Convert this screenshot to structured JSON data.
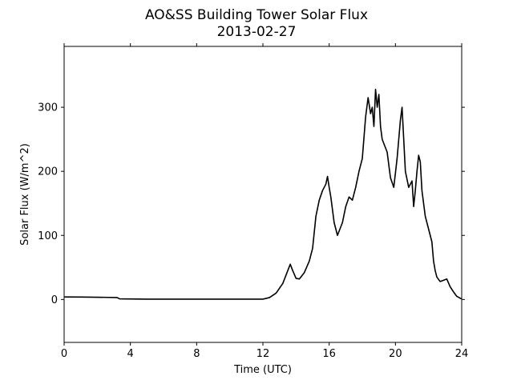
{
  "chart_data": {
    "type": "line",
    "title": "AO&SS Building Tower Solar Flux",
    "subtitle": "2013-02-27",
    "xlabel": "Time (UTC)",
    "ylabel": "Solar Flux (W/m^2)",
    "xlim": [
      0,
      24
    ],
    "ylim": [
      -67,
      395
    ],
    "xticks": [
      0,
      4,
      8,
      12,
      16,
      20,
      24
    ],
    "yticks": [
      0,
      100,
      200,
      300
    ],
    "grid": false,
    "line_color": "#000000",
    "series": [
      {
        "x": [
          0,
          1,
          2,
          3.2,
          3.35,
          5,
          8,
          10,
          12,
          12.4,
          12.8,
          13.2,
          13.5,
          13.65,
          13.8,
          14.0,
          14.2,
          14.5,
          14.8,
          15.0,
          15.2,
          15.4,
          15.6,
          15.8,
          15.9,
          16.0,
          16.1,
          16.3,
          16.5,
          16.8,
          17.0,
          17.2,
          17.4,
          17.6,
          17.8,
          18.0,
          18.2,
          18.35,
          18.5,
          18.6,
          18.7,
          18.8,
          18.9,
          19.0,
          19.1,
          19.2,
          19.35,
          19.5,
          19.7,
          19.9,
          20.1,
          20.3,
          20.4,
          20.5,
          20.6,
          20.8,
          21.0,
          21.1,
          21.2,
          21.3,
          21.4,
          21.5,
          21.6,
          21.8,
          22.0,
          22.2,
          22.3,
          22.4,
          22.5,
          22.7,
          22.9,
          23.1,
          23.3,
          23.5,
          23.7,
          23.9,
          24.0
        ],
        "y": [
          4,
          3.8,
          3.5,
          3,
          1,
          0.5,
          0.5,
          0.5,
          0.5,
          3,
          10,
          25,
          45,
          55,
          45,
          33,
          32,
          42,
          60,
          80,
          130,
          155,
          170,
          180,
          192,
          175,
          160,
          120,
          100,
          120,
          145,
          160,
          155,
          175,
          200,
          220,
          285,
          315,
          290,
          300,
          270,
          328,
          300,
          320,
          270,
          250,
          240,
          230,
          190,
          175,
          220,
          280,
          300,
          250,
          200,
          175,
          185,
          145,
          170,
          200,
          225,
          215,
          170,
          130,
          110,
          90,
          60,
          45,
          35,
          28,
          30,
          32,
          20,
          12,
          5,
          2,
          1
        ]
      }
    ]
  }
}
